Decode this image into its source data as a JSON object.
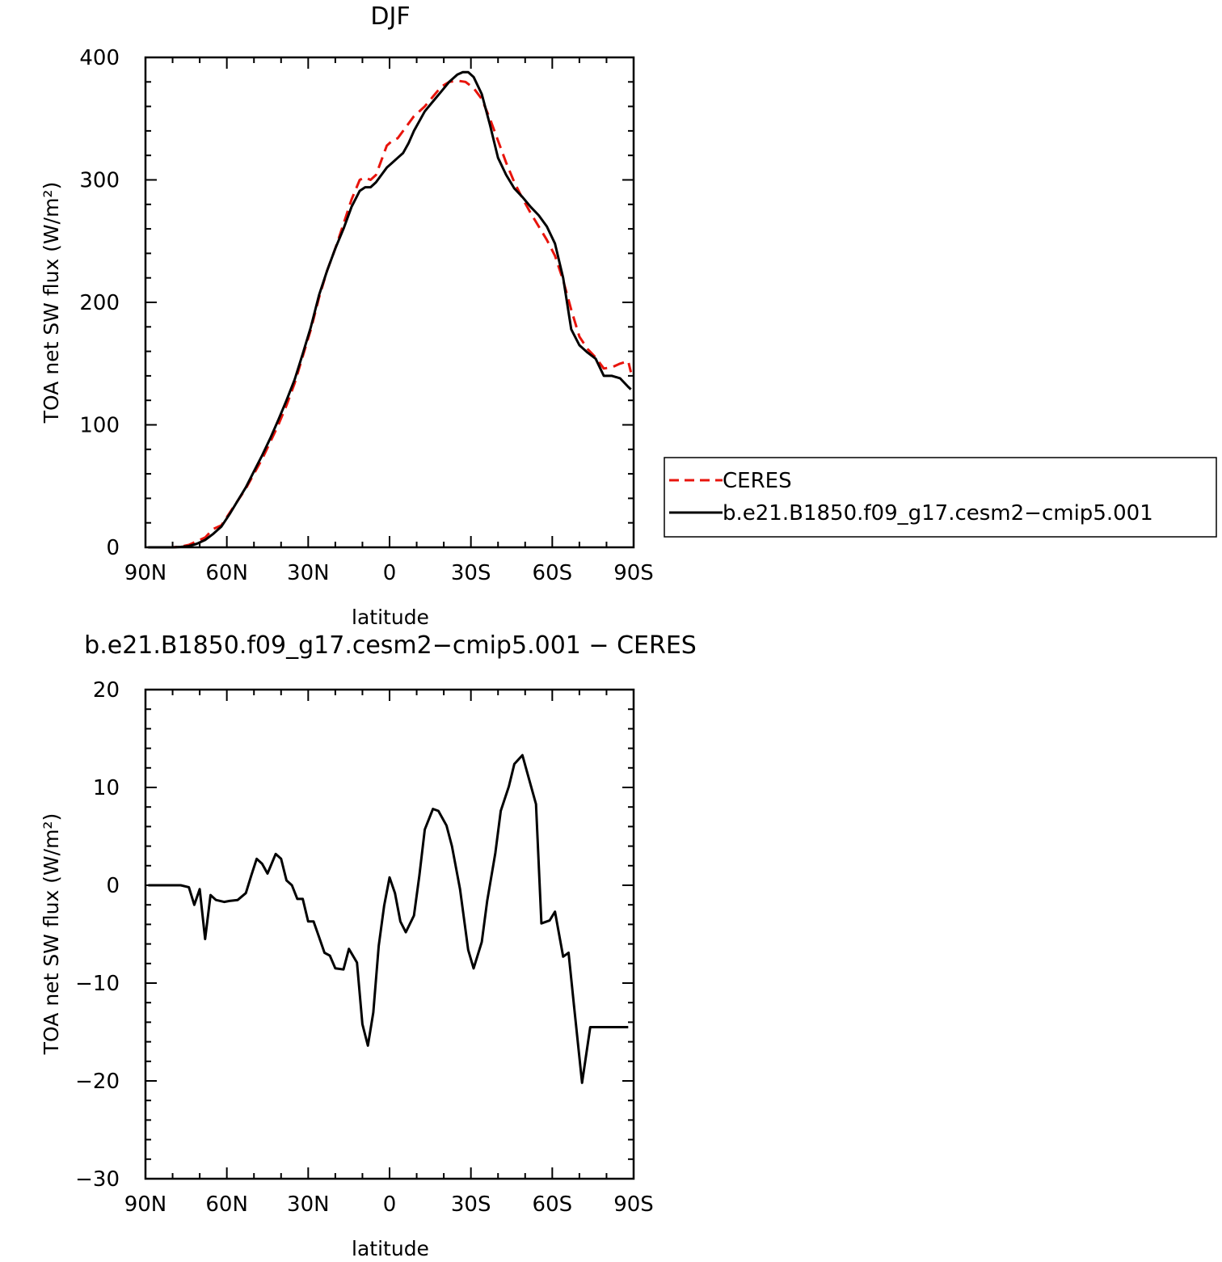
{
  "chart_data": [
    {
      "type": "line",
      "title": "DJF",
      "xlabel": "latitude",
      "ylabel": "TOA net SW flux (W/m²)",
      "xlim": [
        -90,
        90
      ],
      "ylim": [
        0,
        400
      ],
      "x_tick_values": [
        -90,
        -60,
        -30,
        0,
        30,
        60,
        90
      ],
      "x_tick_labels": [
        "90N",
        "60N",
        "30N",
        "0",
        "30S",
        "60S",
        "90S"
      ],
      "y_tick_values": [
        0,
        100,
        200,
        300,
        400
      ],
      "y_tick_labels": [
        "0",
        "100",
        "200",
        "300",
        "400"
      ],
      "legend_position": "right",
      "series": [
        {
          "name": "CERES",
          "color": "#e8140c",
          "dash": "dashed",
          "x": [
            -89,
            -86,
            -83,
            -80,
            -77,
            -74,
            -71,
            -68,
            -65,
            -62,
            -59,
            -56,
            -53,
            -50,
            -47,
            -44,
            -41,
            -38,
            -35,
            -32,
            -29,
            -26,
            -23,
            -20,
            -17,
            -14,
            -11,
            -9,
            -7,
            -5,
            -3,
            -1,
            1,
            3,
            5,
            7,
            9,
            11,
            13,
            16,
            19,
            22,
            25,
            28,
            31,
            34,
            37,
            40,
            43,
            46,
            49,
            52,
            55,
            58,
            61,
            64,
            67,
            70,
            73,
            76,
            79,
            82,
            85,
            88,
            89
          ],
          "y": [
            0,
            0,
            0,
            0,
            0.5,
            2,
            5,
            8,
            15,
            18,
            28,
            38,
            48,
            60,
            72,
            86,
            100,
            116,
            134,
            156,
            178,
            204,
            226,
            244,
            264,
            284,
            300,
            302,
            300,
            304,
            316,
            328,
            332,
            334,
            340,
            346,
            352,
            356,
            360,
            368,
            376,
            380,
            381,
            380,
            375,
            366,
            350,
            332,
            314,
            298,
            285,
            273,
            262,
            251,
            238,
            218,
            194,
            172,
            162,
            155,
            146,
            147,
            150,
            152,
            143
          ]
        },
        {
          "name": "b.e21.B1850.f09_g17.cesm2−cmip5.001",
          "color": "#000000",
          "dash": "solid",
          "x": [
            -89,
            -86,
            -83,
            -80,
            -77,
            -74,
            -71,
            -68,
            -65,
            -62,
            -59,
            -56,
            -53,
            -50,
            -47,
            -44,
            -41,
            -38,
            -35,
            -32,
            -29,
            -26,
            -23,
            -20,
            -17,
            -14,
            -11,
            -9,
            -7,
            -5,
            -3,
            -1,
            1,
            3,
            5,
            7,
            9,
            11,
            13,
            16,
            19,
            22,
            25,
            27,
            29,
            31,
            34,
            37,
            40,
            43,
            46,
            49,
            52,
            55,
            58,
            61,
            64,
            67,
            70,
            73,
            76,
            79,
            82,
            85,
            88,
            89
          ],
          "y": [
            0,
            0,
            0,
            0,
            0.3,
            1,
            3,
            6,
            11,
            17,
            27,
            38,
            49,
            62,
            75,
            89,
            104,
            120,
            137,
            158,
            180,
            206,
            226,
            244,
            260,
            278,
            291,
            294,
            294,
            298,
            304,
            310,
            314,
            318,
            322,
            330,
            340,
            348,
            356,
            364,
            372,
            380,
            386,
            388,
            388,
            384,
            370,
            345,
            318,
            304,
            293,
            286,
            278,
            271,
            262,
            248,
            220,
            178,
            165,
            159,
            154,
            140,
            140,
            138,
            131,
            129
          ]
        }
      ]
    },
    {
      "type": "line",
      "title": "b.e21.B1850.f09_g17.cesm2−cmip5.001 − CERES",
      "xlabel": "latitude",
      "ylabel": "TOA net SW flux (W/m²)",
      "xlim": [
        -90,
        90
      ],
      "ylim": [
        -30,
        20
      ],
      "x_tick_values": [
        -90,
        -60,
        -30,
        0,
        30,
        60,
        90
      ],
      "x_tick_labels": [
        "90N",
        "60N",
        "30N",
        "0",
        "30S",
        "60S",
        "90S"
      ],
      "y_tick_values": [
        -30,
        -20,
        -10,
        0,
        10,
        20
      ],
      "y_tick_labels": [
        "−30",
        "−20",
        "−10",
        "0",
        "10",
        "20"
      ],
      "series": [
        {
          "color": "#000000",
          "dash": "solid",
          "x": [
            -89,
            -86,
            -83,
            -80,
            -77,
            -74,
            -72,
            -70,
            -68,
            -66,
            -64,
            -61,
            -59,
            -56,
            -53,
            -51,
            -49,
            -47,
            -45,
            -42,
            -40,
            -38,
            -36,
            -34,
            -32,
            -30,
            -28,
            -26,
            -24,
            -22,
            -20,
            -17,
            -15,
            -12,
            -10,
            -8,
            -6,
            -4,
            -2,
            0,
            2,
            4,
            6,
            9,
            11,
            13,
            16,
            18,
            21,
            23,
            26,
            29,
            31,
            34,
            36,
            39,
            41,
            44,
            46,
            49,
            51,
            54,
            56,
            59,
            61,
            64,
            66,
            68,
            71,
            74,
            76,
            79,
            81,
            84,
            86,
            88
          ],
          "y": [
            0,
            0,
            0,
            0,
            0,
            -0.2,
            -2,
            -0.4,
            -5.5,
            -1,
            -1.5,
            -1.7,
            -1.6,
            -1.5,
            -0.8,
            1,
            2.7,
            2.2,
            1.2,
            3.2,
            2.7,
            0.5,
            0,
            -1.4,
            -1.4,
            -3.7,
            -3.7,
            -5.3,
            -6.9,
            -7.2,
            -8.5,
            -8.6,
            -6.5,
            -7.9,
            -14.2,
            -16.4,
            -13,
            -6.2,
            -2.1,
            0.8,
            -0.8,
            -3.7,
            -4.8,
            -3.1,
            1,
            5.7,
            7.8,
            7.6,
            6.1,
            4,
            -0.4,
            -6.6,
            -8.5,
            -5.8,
            -1.6,
            3.3,
            7.6,
            10.1,
            12.4,
            13.3,
            11.3,
            8.3,
            -3.9,
            -3.6,
            -2.7,
            -7.3,
            -6.9,
            -12.3,
            -20.2,
            -14.5,
            -14.5,
            -14.5,
            -14.5,
            -14.5,
            -14.5,
            -14.5
          ]
        }
      ]
    }
  ]
}
